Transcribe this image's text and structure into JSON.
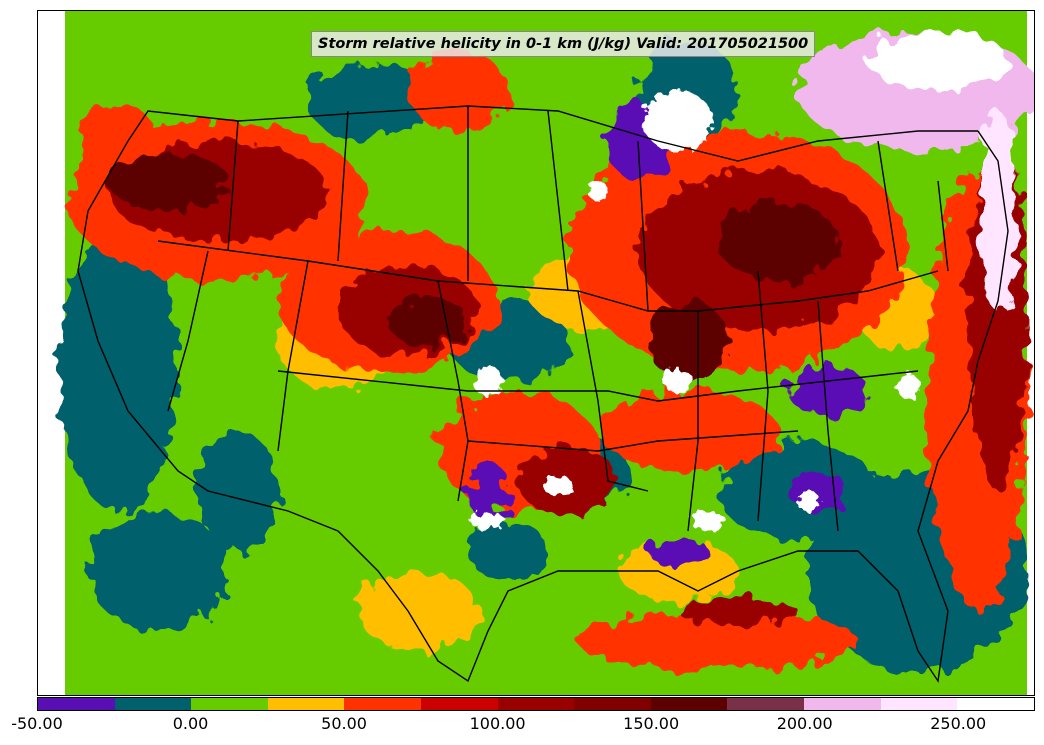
{
  "title": "Storm relative helicity in 0-1 km (J/kg) Valid: 201705021500",
  "colorbar": {
    "min": -50,
    "max": 275,
    "step": 25,
    "colors": [
      "#5a0fb4",
      "#00606c",
      "#66cc00",
      "#ffbf00",
      "#ff3300",
      "#cc0000",
      "#990000",
      "#800000",
      "#5c0000",
      "#7a3048",
      "#f0b8ec",
      "#ffe5ff",
      "#ffffff"
    ],
    "ticks": [
      "-50.00",
      "0.00",
      "50.00",
      "100.00",
      "150.00",
      "200.00",
      "250.00"
    ],
    "tick_values": [
      -50,
      0,
      50,
      100,
      150,
      200,
      250
    ]
  },
  "map": {
    "region": "Continental United States",
    "background_color": "#66cc00",
    "boundary_color": "#000000"
  }
}
